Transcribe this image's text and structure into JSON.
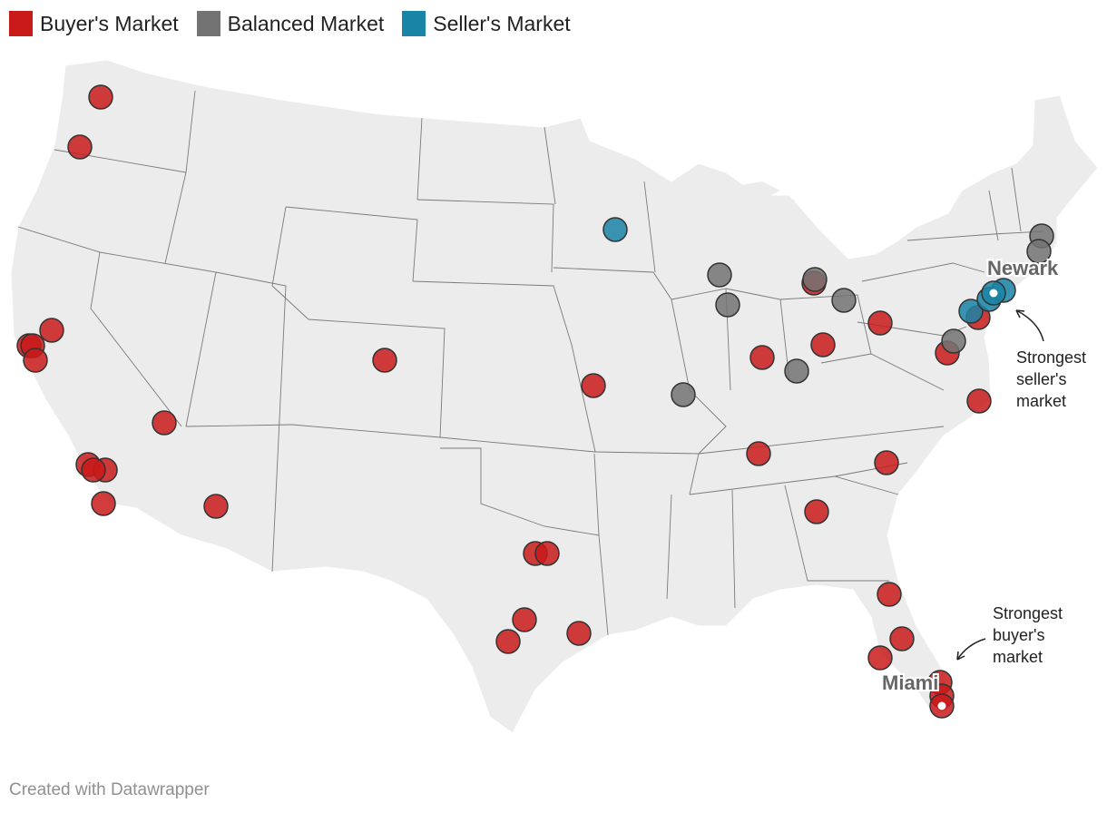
{
  "colors": {
    "buyer": "#c91a1a",
    "balanced": "#737373",
    "seller": "#1a84a6",
    "land": "#ececec",
    "border": "#777777"
  },
  "legend": [
    {
      "key": "buyer",
      "label": "Buyer's Market"
    },
    {
      "key": "balanced",
      "label": "Balanced Market"
    },
    {
      "key": "seller",
      "label": "Seller's Market"
    }
  ],
  "cities": [
    {
      "label": "Newark",
      "category": "seller",
      "highlight": true
    },
    {
      "label": "Miami",
      "category": "buyer",
      "highlight": true
    }
  ],
  "annotations": [
    {
      "lines": [
        "Strongest",
        "seller's",
        "market"
      ]
    },
    {
      "lines": [
        "Strongest",
        "buyer's",
        "market"
      ]
    }
  ],
  "credit": "Created with Datawrapper"
}
